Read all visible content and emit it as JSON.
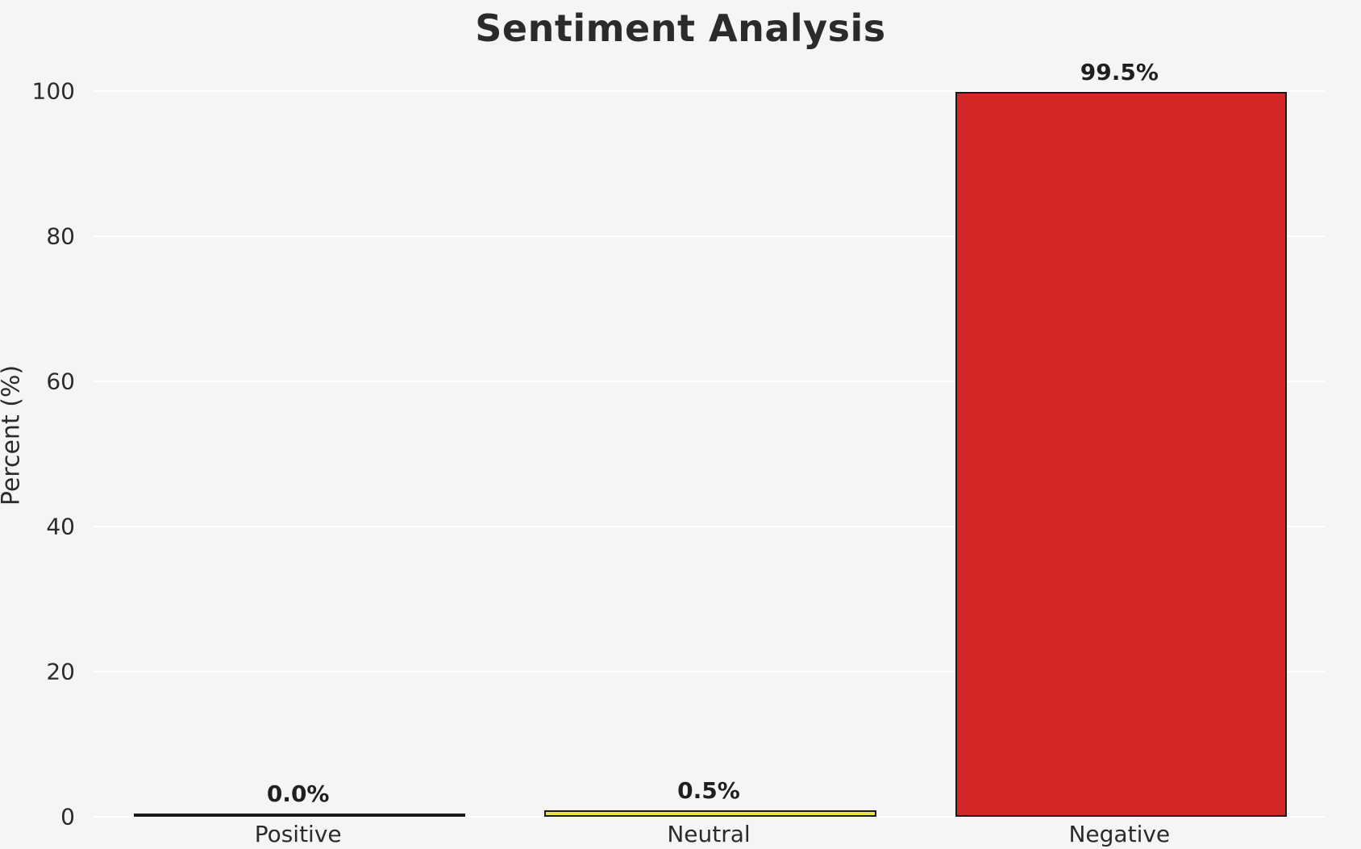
{
  "chart_data": {
    "type": "bar",
    "title": "Sentiment Analysis",
    "xlabel": "",
    "ylabel": "Percent (%)",
    "categories": [
      "Positive",
      "Neutral",
      "Negative"
    ],
    "values": [
      0.0,
      0.5,
      99.5
    ],
    "value_labels": [
      "0.0%",
      "0.5%",
      "99.5%"
    ],
    "bar_colors": [
      "#2ca02c",
      "#e8e33d",
      "#d62728"
    ],
    "edge_color": "#1a1a1a",
    "ylim": [
      0,
      100
    ],
    "yticks": [
      0,
      20,
      40,
      60,
      80,
      100
    ],
    "grid": true,
    "legend": "none",
    "background_color": "#f5f5f6",
    "gridline_color": "#ffffff"
  }
}
